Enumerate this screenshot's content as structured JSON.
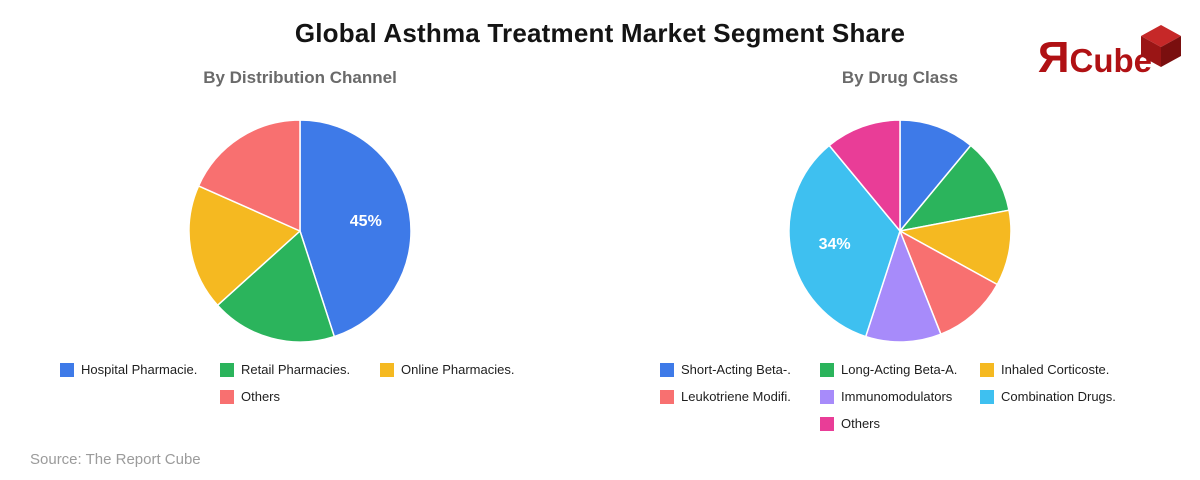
{
  "title": "Global Asthma Treatment Market Segment Share",
  "logo": {
    "r_glyph": "Я",
    "name_text": "Cube",
    "text_color": "#B01114",
    "cube_icon_colors": {
      "top": "#C62828",
      "left": "#9A1515",
      "right": "#7A0F0F"
    }
  },
  "source": {
    "text": "Source: The Report Cube"
  },
  "chart_data": [
    {
      "type": "pie",
      "title": "By Distribution Channel",
      "legend_position": "bottom",
      "start_angle_deg": 0,
      "slices": [
        {
          "label": "Hospital Pharmacie.",
          "value": 45,
          "color": "#3E7AE8",
          "pct_label": "45%"
        },
        {
          "label": "Retail Pharmacies.",
          "value": 18.33,
          "color": "#2BB45C",
          "pct_label": ""
        },
        {
          "label": "Online Pharmacies.",
          "value": 18.33,
          "color": "#F5B921",
          "pct_label": ""
        },
        {
          "label": "Others",
          "value": 18.34,
          "color": "#F87070",
          "pct_label": ""
        }
      ]
    },
    {
      "type": "pie",
      "title": "By Drug Class",
      "legend_position": "bottom",
      "start_angle_deg": 0,
      "slices": [
        {
          "label": "Short-Acting Beta-.",
          "value": 11,
          "color": "#3E7AE8",
          "pct_label": ""
        },
        {
          "label": "Long-Acting Beta-A.",
          "value": 11,
          "color": "#2BB45C",
          "pct_label": ""
        },
        {
          "label": "Inhaled Corticoste.",
          "value": 11,
          "color": "#F5B921",
          "pct_label": ""
        },
        {
          "label": "Leukotriene Modifi.",
          "value": 11,
          "color": "#F87070",
          "pct_label": ""
        },
        {
          "label": "Immunomodulators",
          "value": 11,
          "color": "#A78BFA",
          "pct_label": ""
        },
        {
          "label": "Combination Drugs.",
          "value": 34,
          "color": "#3EC0F0",
          "pct_label": "34%"
        },
        {
          "label": "Others",
          "value": 11,
          "color": "#E93D97",
          "pct_label": ""
        }
      ]
    }
  ]
}
